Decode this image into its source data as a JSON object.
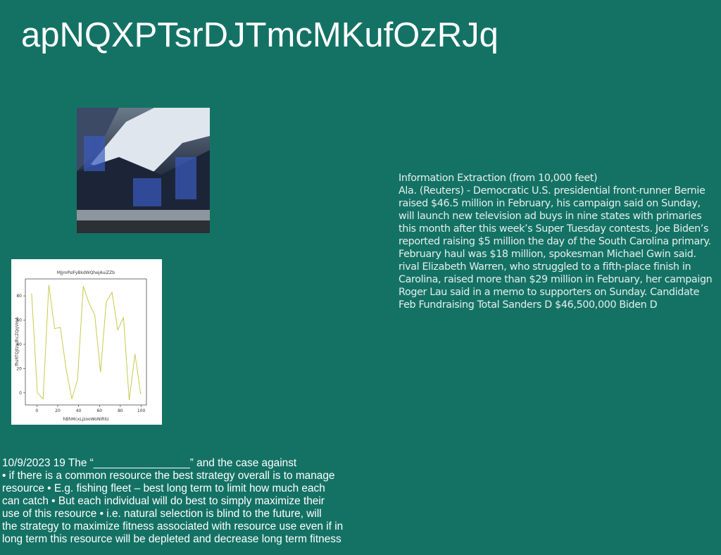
{
  "header": {
    "title": "apNQXPTsrDJTmcMKufOzRJq"
  },
  "chart_data": {
    "type": "line",
    "title": "MJjmPsIFyBkdWQhejAuiZZb",
    "x_label": "hBhMcxLjzooWoNIRIU",
    "y_label": "fhsRTQJtzxdhcZQqVmA",
    "x": [
      -5,
      0.5,
      6,
      11.5,
      17,
      22.5,
      28,
      33.5,
      39,
      44.5,
      50,
      55.5,
      61,
      66.5,
      72,
      77.5,
      83,
      88.5,
      94,
      99.5
    ],
    "values": [
      82,
      0,
      -5,
      89,
      53,
      54,
      20,
      -5,
      11,
      88,
      74,
      64,
      17,
      75,
      83,
      52,
      62,
      -6,
      32,
      -1
    ],
    "color": "#c9c94f",
    "xlim": [
      -11,
      105
    ],
    "xticks": [
      0,
      20,
      40,
      60,
      80,
      100
    ],
    "ylim": [
      -10,
      94
    ],
    "yticks": [
      0,
      20,
      40,
      60,
      80
    ]
  },
  "article": {
    "lines": [
      "Information Extraction (from 10,000 feet)",
      "Ala. (Reuters) - Democratic U.S. presidential front-runner Bernie",
      "raised $46.5 million in February, his campaign said on Sunday,",
      "will launch new television ad buys in nine states with primaries",
      "this month after this week’s Super Tuesday contests. Joe Biden’s",
      "reported raising $5 million the day of the South Carolina primary.",
      "February haul was $18 million, spokesman Michael Gwin said.",
      "rival Elizabeth Warren, who struggled to a fifth-place finish in",
      "Carolina, raised more than $29 million in February, her campaign",
      "Roger Lau said in a memo to supporters on Sunday. Candidate",
      "Feb Fundraising Total Sanders D $46,500,000 Biden D"
    ]
  },
  "notes": {
    "lines": [
      "10/9/2023 19 The “________________” and the case against",
      "• if there is a common resource the best strategy overall is to manage",
      "resource • E.g. fishing fleet – best long term to limit how much each",
      "can catch • But each individual will do best to simply maximize their",
      "use of this resource • i.e. natural selection is blind to the future, will",
      "the strategy to maximize fitness associated with resource use even if in",
      "long term this resource will be depleted and decrease long term fitness"
    ]
  }
}
